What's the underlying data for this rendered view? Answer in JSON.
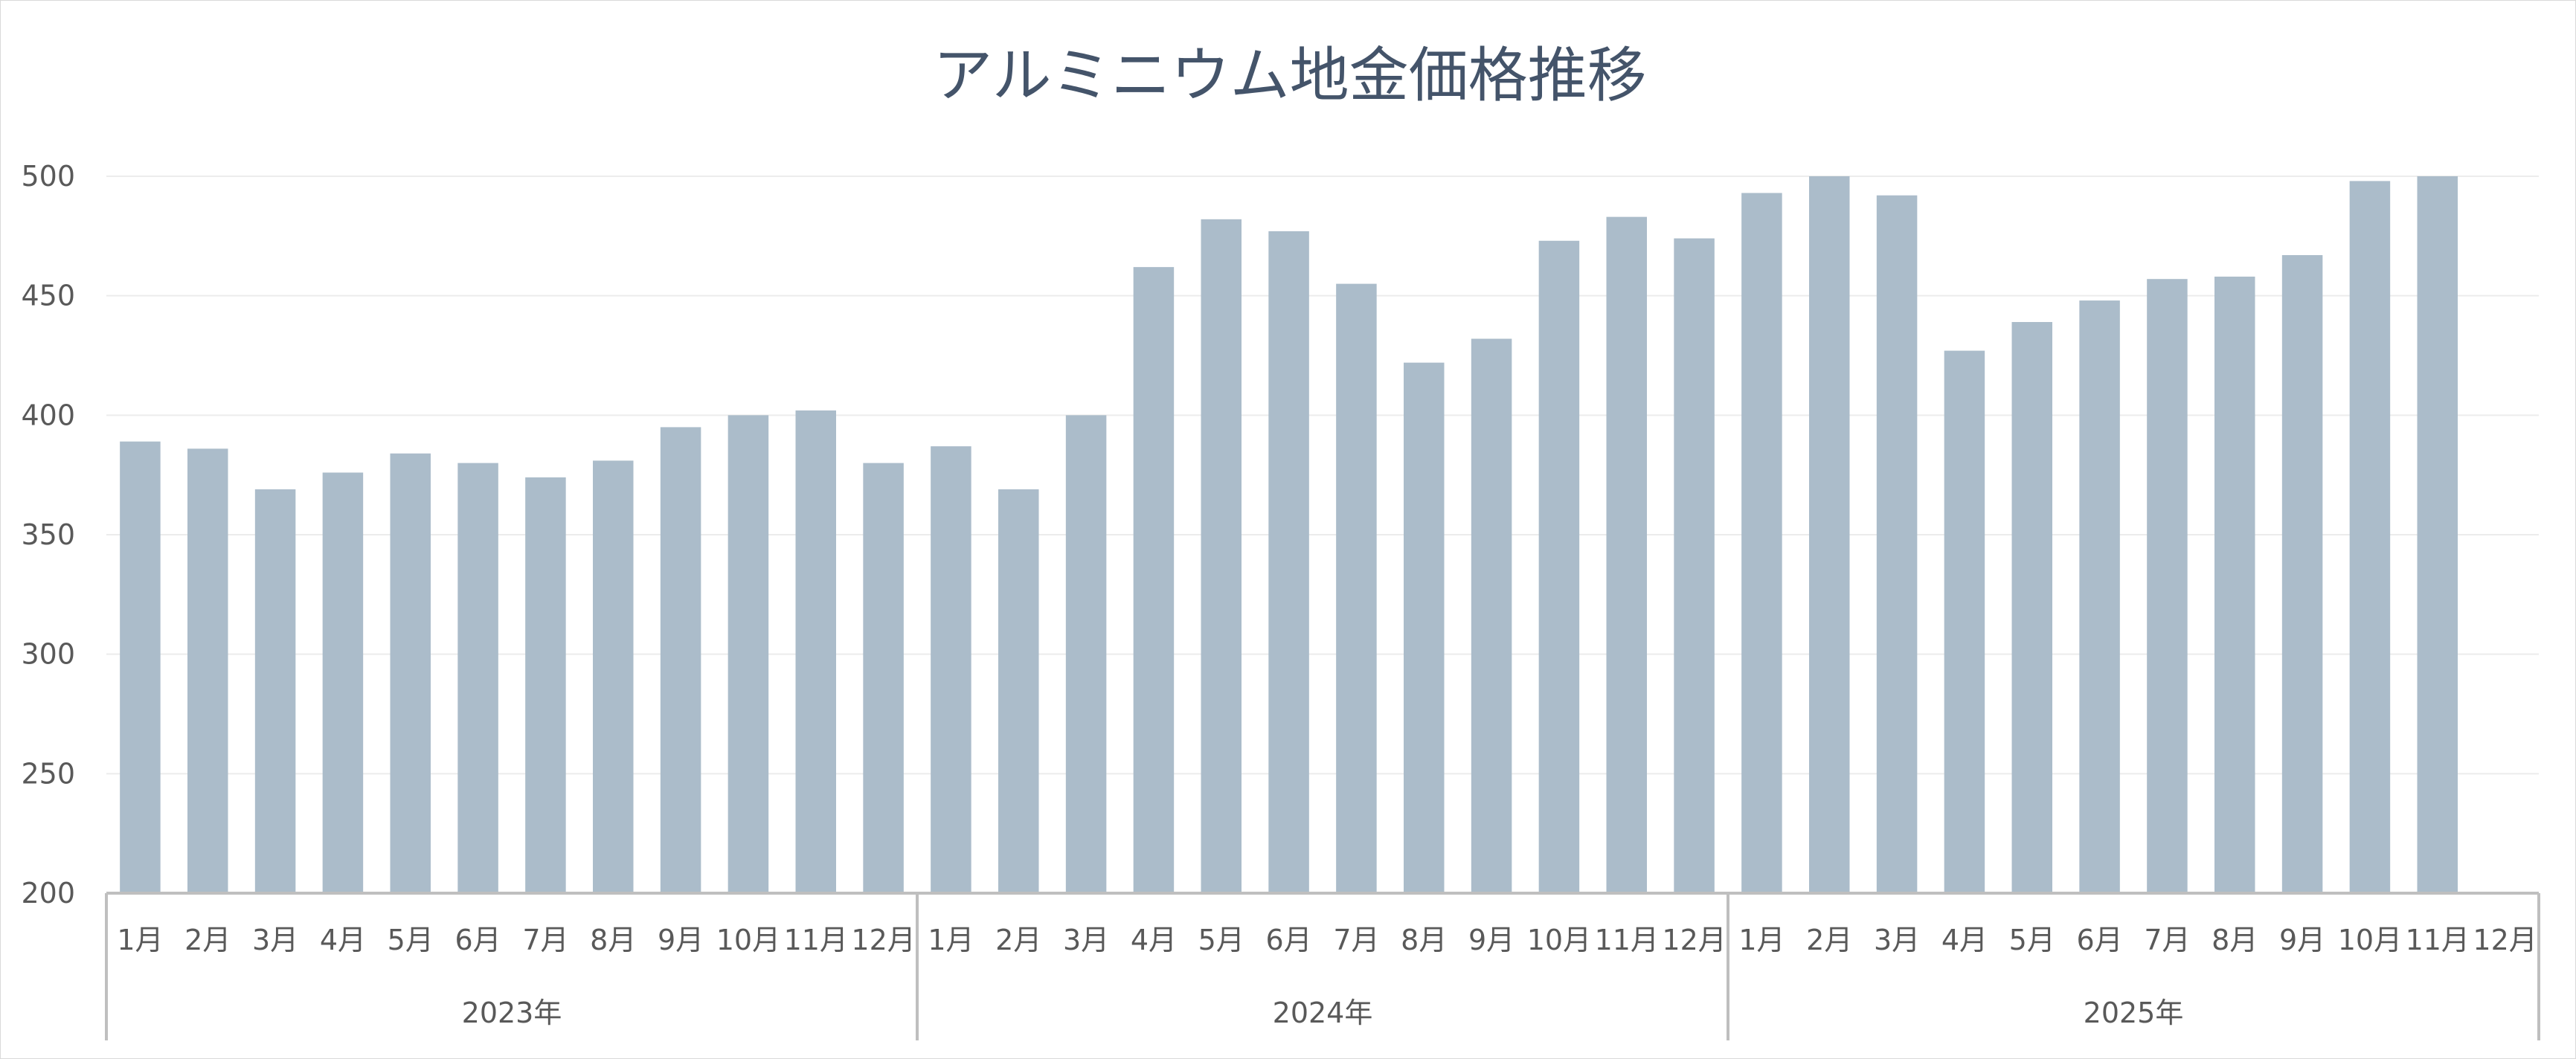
{
  "chart_data": {
    "type": "bar",
    "title": "アルミニウム地金価格推移",
    "xlabel": "",
    "ylabel": "",
    "ylim": [
      200,
      500
    ],
    "yticks": [
      200,
      250,
      300,
      350,
      400,
      450,
      500
    ],
    "grid": true,
    "legend": "none",
    "groups": [
      {
        "label": "2023年",
        "months": [
          "1月",
          "2月",
          "3月",
          "4月",
          "5月",
          "6月",
          "7月",
          "8月",
          "9月",
          "10月",
          "11月",
          "12月"
        ]
      },
      {
        "label": "2024年",
        "months": [
          "1月",
          "2月",
          "3月",
          "4月",
          "5月",
          "6月",
          "7月",
          "8月",
          "9月",
          "10月",
          "11月",
          "12月"
        ]
      },
      {
        "label": "2025年",
        "months": [
          "1月",
          "2月",
          "3月",
          "4月",
          "5月",
          "6月",
          "7月",
          "8月",
          "9月",
          "10月",
          "11月",
          "12月"
        ]
      }
    ],
    "values": [
      389,
      386,
      369,
      376,
      384,
      380,
      374,
      381,
      395,
      400,
      402,
      380,
      387,
      369,
      400,
      462,
      482,
      477,
      455,
      422,
      432,
      473,
      483,
      474,
      493,
      500,
      492,
      427,
      439,
      448,
      457,
      458,
      467,
      498,
      500,
      null
    ],
    "colors": {
      "bar": "#abbcca",
      "title": "#44546a",
      "text": "#595959",
      "grid": "#ececec",
      "axis": "#bfbfbf"
    }
  }
}
